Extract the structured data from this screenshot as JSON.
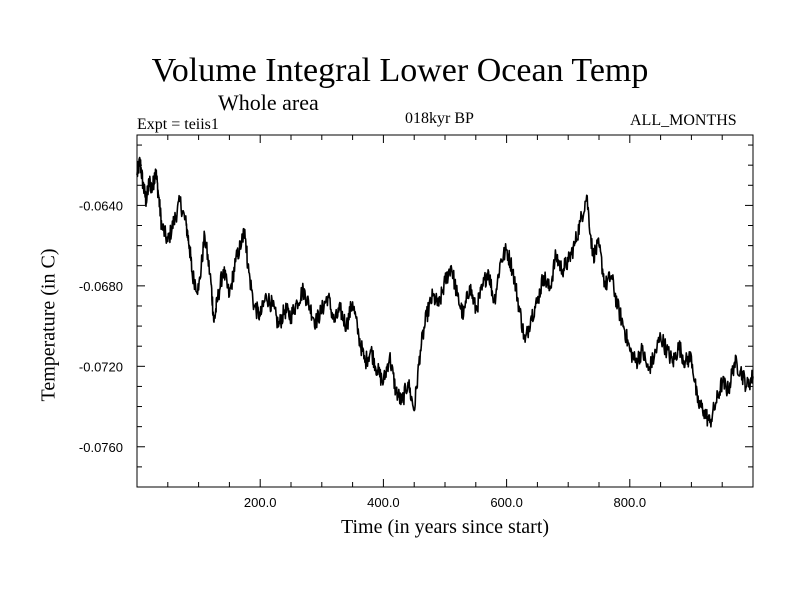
{
  "chart_data": {
    "type": "line",
    "title": "Volume Integral Lower Ocean Temp",
    "subtitle": "Whole area",
    "left_annotation": "Expt = teiis1",
    "center_annotation": "018kyr BP",
    "right_annotation": "ALL_MONTHS",
    "xlabel": "Time (in years since start)",
    "ylabel": "Temperature (in C)",
    "xlim": [
      0,
      1000
    ],
    "ylim": [
      -0.078,
      -0.0605
    ],
    "x_ticks": [
      200,
      400,
      600,
      800
    ],
    "x_tick_labels": [
      "200.0",
      "400.0",
      "600.0",
      "800.0"
    ],
    "y_ticks": [
      -0.076,
      -0.072,
      -0.068,
      -0.064
    ],
    "y_tick_labels": [
      "-0.0760",
      "-0.0720",
      "-0.0680",
      "-0.0640"
    ],
    "grid": false,
    "legend": "none",
    "line_color": "#000000",
    "series": [
      {
        "x": [
          0,
          5,
          10,
          15,
          20,
          25,
          30,
          35,
          40,
          50,
          60,
          70,
          80,
          85,
          90,
          100,
          110,
          120,
          125,
          130,
          140,
          150,
          160,
          170,
          175,
          180,
          190,
          200,
          210,
          220,
          230,
          240,
          250,
          260,
          270,
          280,
          290,
          300,
          310,
          320,
          330,
          340,
          350,
          360,
          370,
          380,
          390,
          400,
          410,
          420,
          430,
          440,
          450,
          460,
          470,
          480,
          490,
          500,
          510,
          520,
          530,
          540,
          550,
          560,
          570,
          580,
          590,
          600,
          610,
          620,
          630,
          640,
          650,
          660,
          670,
          680,
          690,
          700,
          710,
          720,
          730,
          740,
          750,
          760,
          770,
          780,
          790,
          800,
          810,
          820,
          830,
          840,
          850,
          860,
          870,
          880,
          890,
          900,
          910,
          920,
          930,
          940,
          950,
          960,
          970,
          980,
          990,
          1000
        ],
        "y": [
          -0.0625,
          -0.0618,
          -0.063,
          -0.0638,
          -0.0628,
          -0.0632,
          -0.0622,
          -0.0635,
          -0.065,
          -0.0658,
          -0.0648,
          -0.0638,
          -0.065,
          -0.066,
          -0.0675,
          -0.0682,
          -0.0655,
          -0.0678,
          -0.0698,
          -0.0688,
          -0.0672,
          -0.0685,
          -0.0668,
          -0.0658,
          -0.0652,
          -0.067,
          -0.069,
          -0.0695,
          -0.0685,
          -0.069,
          -0.07,
          -0.0692,
          -0.0695,
          -0.0688,
          -0.0682,
          -0.069,
          -0.0698,
          -0.0692,
          -0.0685,
          -0.0698,
          -0.0692,
          -0.07,
          -0.0688,
          -0.0705,
          -0.0718,
          -0.0712,
          -0.0722,
          -0.0728,
          -0.0715,
          -0.0732,
          -0.0738,
          -0.0728,
          -0.0742,
          -0.0712,
          -0.0695,
          -0.0685,
          -0.069,
          -0.0678,
          -0.067,
          -0.0685,
          -0.0695,
          -0.068,
          -0.0692,
          -0.0682,
          -0.0672,
          -0.0688,
          -0.0668,
          -0.0662,
          -0.0672,
          -0.069,
          -0.0708,
          -0.0695,
          -0.0688,
          -0.0675,
          -0.0682,
          -0.0665,
          -0.0672,
          -0.0668,
          -0.066,
          -0.0648,
          -0.0635,
          -0.0665,
          -0.066,
          -0.068,
          -0.0675,
          -0.069,
          -0.07,
          -0.0712,
          -0.0718,
          -0.0712,
          -0.0722,
          -0.0715,
          -0.0705,
          -0.0712,
          -0.0718,
          -0.071,
          -0.0718,
          -0.0715,
          -0.0738,
          -0.0742,
          -0.0748,
          -0.0738,
          -0.0728,
          -0.0732,
          -0.0718,
          -0.0722,
          -0.073,
          -0.0725
        ]
      }
    ]
  }
}
